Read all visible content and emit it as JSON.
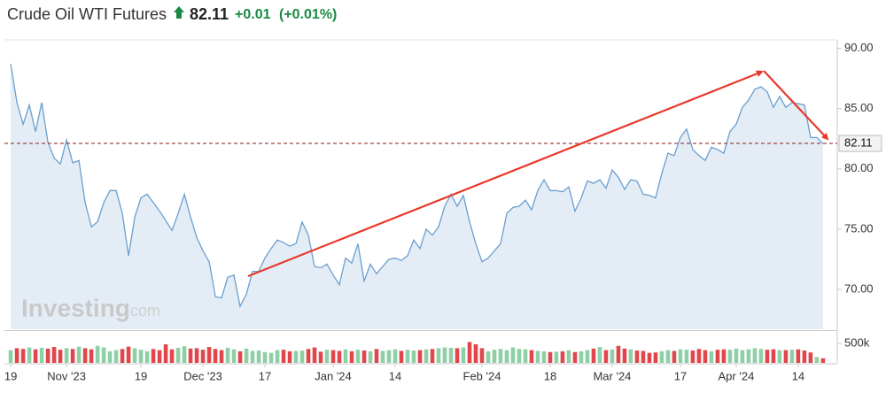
{
  "chart_data": {
    "type": "line",
    "title": "Crude Oil WTI Futures",
    "last_value": 82.11,
    "change": "+0.01",
    "change_percent": "(+0.01%)",
    "watermark": [
      "Investing",
      ".com"
    ],
    "x": [
      0,
      1,
      2,
      3,
      4,
      5,
      6,
      7,
      8,
      9,
      10,
      11,
      12,
      13,
      14,
      15,
      16,
      17,
      18,
      19,
      20,
      21,
      22,
      23,
      24,
      25,
      26,
      27,
      28,
      29,
      30,
      31,
      32,
      33,
      34,
      35,
      36,
      37,
      38,
      39,
      40,
      41,
      42,
      43,
      44,
      45,
      46,
      47,
      48,
      49,
      50,
      51,
      52,
      53,
      54,
      55,
      56,
      57,
      58,
      59,
      60,
      61,
      62,
      63,
      64,
      65,
      66,
      67,
      68,
      69,
      70,
      71,
      72,
      73,
      74,
      75,
      76,
      77,
      78,
      79,
      80,
      81,
      82,
      83,
      84,
      85,
      86,
      87,
      88,
      89,
      90,
      91,
      92,
      93,
      94,
      95,
      96,
      97,
      98,
      99,
      100,
      101,
      102,
      103,
      104,
      105,
      106,
      107,
      108,
      109,
      110,
      111,
      112,
      113,
      114,
      115,
      116,
      117,
      118,
      119,
      120,
      121,
      122,
      123,
      124,
      125,
      126,
      127,
      128,
      129,
      130,
      131
    ],
    "xlim": [
      -0.3,
      133.3
    ],
    "xticks": [
      {
        "value": 0,
        "label": "19"
      },
      {
        "value": 9,
        "label": "Nov '23"
      },
      {
        "value": 21,
        "label": "19"
      },
      {
        "value": 31,
        "label": "Dec '23"
      },
      {
        "value": 41,
        "label": "17"
      },
      {
        "value": 52,
        "label": "Jan '24"
      },
      {
        "value": 62,
        "label": "14"
      },
      {
        "value": 76,
        "label": "Feb '24"
      },
      {
        "value": 87,
        "label": "18"
      },
      {
        "value": 97,
        "label": "Mar '24"
      },
      {
        "value": 108,
        "label": "17"
      },
      {
        "value": 117,
        "label": "Apr '24"
      },
      {
        "value": 127,
        "label": "14"
      }
    ],
    "ylim": [
      66.7,
      90.7
    ],
    "yticks": [
      {
        "value": 70,
        "label": "70.00"
      },
      {
        "value": 75,
        "label": "75.00"
      },
      {
        "value": 80,
        "label": "80.00"
      },
      {
        "value": 85,
        "label": "85.00"
      },
      {
        "value": 90,
        "label": "90.00"
      }
    ],
    "grid": false,
    "series": [
      {
        "color": "#6a9fcf",
        "fill": "#e4edf6",
        "values": [
          88.7,
          85.5,
          83.7,
          85.3,
          83.1,
          85.5,
          82.2,
          80.9,
          80.4,
          82.4,
          80.5,
          80.7,
          77.2,
          75.2,
          75.6,
          77.2,
          78.2,
          78.2,
          76.3,
          72.8,
          76.0,
          77.6,
          77.9,
          77.2,
          76.5,
          75.7,
          74.9,
          76.3,
          77.9,
          76.0,
          74.3,
          73.2,
          72.3,
          69.4,
          69.3,
          71.0,
          71.2,
          68.6,
          69.6,
          71.5,
          71.5,
          72.6,
          73.4,
          74.1,
          73.9,
          73.6,
          73.8,
          75.6,
          74.5,
          71.9,
          71.8,
          72.1,
          71.2,
          70.4,
          72.6,
          72.2,
          73.8,
          70.7,
          72.1,
          71.3,
          71.9,
          72.5,
          72.6,
          72.4,
          72.8,
          74.1,
          73.4,
          75.0,
          74.5,
          75.2,
          76.9,
          77.9,
          76.9,
          77.8,
          75.6,
          73.8,
          72.3,
          72.6,
          73.2,
          73.8,
          76.3,
          76.8,
          76.9,
          77.4,
          76.6,
          78.2,
          79.1,
          78.2,
          78.2,
          78.1,
          78.5,
          76.5,
          77.6,
          79.0,
          78.8,
          79.1,
          78.4,
          79.9,
          79.3,
          78.3,
          79.1,
          79.0,
          77.9,
          77.8,
          77.6,
          79.6,
          81.3,
          81.1,
          82.6,
          83.3,
          81.6,
          81.1,
          80.7,
          81.8,
          81.6,
          81.3,
          83.1,
          83.7,
          85.1,
          85.7,
          86.6,
          86.8,
          86.4,
          85.1,
          86.0,
          85.1,
          85.5,
          85.4,
          85.3,
          82.6,
          82.6,
          82.1
        ]
      }
    ],
    "last_color": "#8b1a1a",
    "volume": {
      "type": "bar",
      "up_color": "#8fcfa6",
      "down_color": "#e0474c",
      "ylim": [
        0,
        800000
      ],
      "yticks": [
        {
          "value": 500000,
          "label": "500k"
        }
      ],
      "values": [
        330000,
        380000,
        360000,
        400000,
        350000,
        390000,
        370000,
        410000,
        340000,
        380000,
        360000,
        420000,
        380000,
        350000,
        440000,
        400000,
        300000,
        330000,
        360000,
        420000,
        380000,
        340000,
        300000,
        360000,
        330000,
        480000,
        350000,
        390000,
        430000,
        370000,
        380000,
        340000,
        410000,
        360000,
        330000,
        390000,
        350000,
        300000,
        370000,
        310000,
        320000,
        280000,
        260000,
        330000,
        340000,
        300000,
        310000,
        320000,
        360000,
        400000,
        290000,
        340000,
        330000,
        310000,
        350000,
        300000,
        340000,
        320000,
        300000,
        360000,
        310000,
        330000,
        350000,
        310000,
        340000,
        320000,
        330000,
        350000,
        360000,
        380000,
        400000,
        390000,
        380000,
        400000,
        540000,
        480000,
        380000,
        300000,
        340000,
        360000,
        330000,
        400000,
        360000,
        350000,
        330000,
        310000,
        300000,
        280000,
        290000,
        300000,
        330000,
        280000,
        300000,
        330000,
        370000,
        410000,
        330000,
        350000,
        440000,
        370000,
        350000,
        320000,
        310000,
        260000,
        270000,
        300000,
        330000,
        310000,
        350000,
        340000,
        320000,
        360000,
        330000,
        300000,
        340000,
        350000,
        340000,
        370000,
        330000,
        350000,
        380000,
        360000,
        340000,
        350000,
        330000,
        330000,
        340000,
        350000,
        320000,
        270000,
        150000,
        120000
      ]
    }
  }
}
